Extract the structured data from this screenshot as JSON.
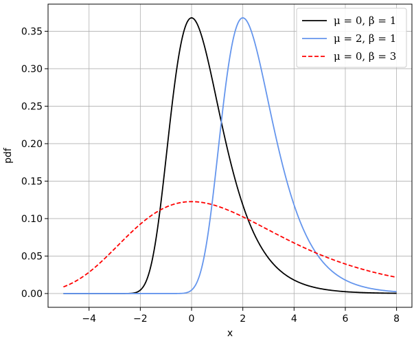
{
  "chart_data": {
    "type": "line",
    "title": "",
    "xlabel": "x",
    "ylabel": "pdf",
    "xlim": [
      -5.6,
      8.6
    ],
    "ylim": [
      -0.0184,
      0.3862
    ],
    "xticks": [
      -4,
      -2,
      0,
      2,
      4,
      6,
      8
    ],
    "xtick_labels": [
      "−4",
      "−2",
      "0",
      "2",
      "4",
      "6",
      "8"
    ],
    "yticks": [
      0.0,
      0.05,
      0.1,
      0.15,
      0.2,
      0.25,
      0.3,
      0.35
    ],
    "ytick_labels": [
      "0.00",
      "0.05",
      "0.10",
      "0.15",
      "0.20",
      "0.25",
      "0.30",
      "0.35"
    ],
    "grid": true,
    "legend_position": "top-right",
    "x_range": [
      -5,
      8
    ],
    "series": [
      {
        "name": "μ = 0,  β = 1",
        "mu": 0,
        "beta": 1,
        "color": "#000000",
        "dash": "solid",
        "x": [
          -5,
          -4,
          -3,
          -2,
          -1.5,
          -1,
          -0.5,
          0,
          0.5,
          1,
          1.5,
          2,
          3,
          4,
          5,
          6,
          7,
          8
        ],
        "values": [
          0.0,
          0.0,
          0.0,
          0.0045,
          0.0399,
          0.1794,
          0.317,
          0.3679,
          0.3386,
          0.2546,
          0.1728,
          0.1182,
          0.0474,
          0.018,
          0.0067,
          0.0025,
          0.0009,
          0.0003
        ]
      },
      {
        "name": "μ = 2,  β = 1",
        "mu": 2,
        "beta": 1,
        "color": "#6495ed",
        "dash": "solid",
        "x": [
          -5,
          -4,
          -3,
          -2,
          -1,
          0,
          0.5,
          1,
          1.5,
          2,
          2.5,
          3,
          3.5,
          4,
          5,
          6,
          7,
          8
        ],
        "values": [
          0.0,
          0.0,
          0.0,
          0.0,
          0.0,
          0.0045,
          0.0399,
          0.1794,
          0.317,
          0.3679,
          0.3386,
          0.2546,
          0.1728,
          0.1182,
          0.0474,
          0.018,
          0.0067,
          0.0025
        ]
      },
      {
        "name": "μ = 0,  β = 3",
        "mu": 0,
        "beta": 3,
        "color": "#ff0000",
        "dash": "dashed",
        "x": [
          -5,
          -4,
          -3,
          -2,
          -1,
          0,
          1,
          2,
          3,
          4,
          5,
          6,
          7,
          8
        ],
        "values": [
          0.0085,
          0.0285,
          0.0602,
          0.0956,
          0.1188,
          0.1226,
          0.1104,
          0.094,
          0.0777,
          0.0637,
          0.0513,
          0.0409,
          0.0325,
          0.0256
        ]
      }
    ]
  }
}
